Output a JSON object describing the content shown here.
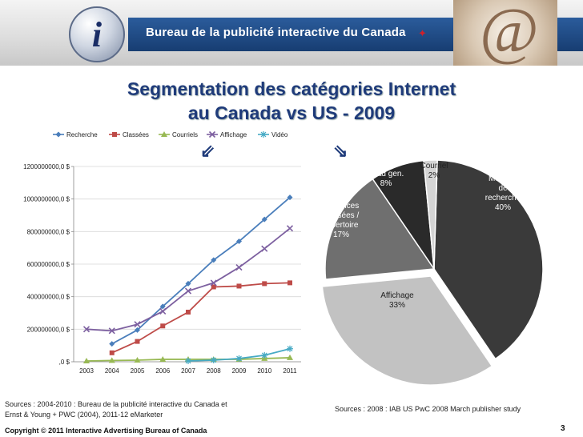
{
  "banner": {
    "text": "Bureau de la publicité interactive du Canada"
  },
  "title": {
    "line1": "Segmentation des catégories Internet",
    "line2": "au Canada vs US - 2009"
  },
  "line_chart": {
    "type": "line",
    "x": [
      "2003",
      "2004",
      "2005",
      "2006",
      "2007",
      "2008",
      "2009",
      "2010",
      "2011"
    ],
    "y_ticks": [
      ",0 $",
      "200000000,0 $",
      "400000000,0 $",
      "600000000,0 $",
      "800000000,0 $",
      "1000000000,0 $",
      "1200000000,0 $"
    ],
    "ylim": [
      0,
      1200000000
    ],
    "series": [
      {
        "name": "Recherche",
        "color": "#4a7ebb",
        "marker": "diamond",
        "values": [
          null,
          110000000,
          195000000,
          340000000,
          480000000,
          625000000,
          740000000,
          875000000,
          1010000000
        ]
      },
      {
        "name": "Classées",
        "color": "#be4b48",
        "marker": "square",
        "values": [
          null,
          55000000,
          125000000,
          220000000,
          305000000,
          460000000,
          465000000,
          480000000,
          485000000
        ]
      },
      {
        "name": "Courriels",
        "color": "#98b954",
        "marker": "triangle",
        "values": [
          5000000,
          8000000,
          10000000,
          15000000,
          15000000,
          15000000,
          15000000,
          20000000,
          25000000
        ]
      },
      {
        "name": "Affichage",
        "color": "#7d60a0",
        "marker": "x",
        "values": [
          200000000,
          190000000,
          230000000,
          310000000,
          435000000,
          485000000,
          580000000,
          695000000,
          820000000
        ]
      },
      {
        "name": "Vidéo",
        "color": "#46aac5",
        "marker": "star",
        "values": [
          null,
          null,
          null,
          null,
          5000000,
          10000000,
          20000000,
          40000000,
          80000000
        ]
      }
    ]
  },
  "pie_chart": {
    "type": "pie",
    "slices": [
      {
        "lines": [
          "Moteurs",
          "de",
          "recherche",
          "40%"
        ],
        "value": 40,
        "color": "#3a3a3a",
        "text_color": "#ffffff"
      },
      {
        "lines": [
          "Affichage",
          "33%"
        ],
        "value": 33,
        "color": "#c2c2c2",
        "text_color": "#222222"
      },
      {
        "lines": [
          "Annonces",
          "classées /",
          "répertoire",
          "17%"
        ],
        "value": 17,
        "color": "#6f6f6f",
        "text_color": "#ffffff"
      },
      {
        "lines": [
          "Lead gen.",
          "8%"
        ],
        "value": 8,
        "color": "#2a2a2a",
        "text_color": "#ffffff"
      },
      {
        "lines": [
          "Courriel",
          "2%"
        ],
        "value": 2,
        "color": "#d4d4d4",
        "text_color": "#222222"
      }
    ]
  },
  "chart_data": [
    {
      "type": "line",
      "x": [
        "2003",
        "2004",
        "2005",
        "2006",
        "2007",
        "2008",
        "2009",
        "2010",
        "2011"
      ],
      "ylim": [
        0,
        1200000000
      ],
      "series": [
        {
          "name": "Recherche",
          "values": [
            null,
            110000000,
            195000000,
            340000000,
            480000000,
            625000000,
            740000000,
            875000000,
            1010000000
          ]
        },
        {
          "name": "Classées",
          "values": [
            null,
            55000000,
            125000000,
            220000000,
            305000000,
            460000000,
            465000000,
            480000000,
            485000000
          ]
        },
        {
          "name": "Courriels",
          "values": [
            5000000,
            8000000,
            10000000,
            15000000,
            15000000,
            15000000,
            15000000,
            20000000,
            25000000
          ]
        },
        {
          "name": "Affichage",
          "values": [
            200000000,
            190000000,
            230000000,
            310000000,
            435000000,
            485000000,
            580000000,
            695000000,
            820000000
          ]
        },
        {
          "name": "Vidéo",
          "values": [
            null,
            null,
            null,
            null,
            5000000,
            10000000,
            20000000,
            40000000,
            80000000
          ]
        }
      ]
    },
    {
      "type": "pie",
      "categories": [
        "Moteurs de recherche",
        "Affichage",
        "Annonces classées / répertoire",
        "Lead gen.",
        "Courriel"
      ],
      "values": [
        40,
        33,
        17,
        8,
        2
      ]
    }
  ],
  "sources": {
    "left_line1": "Sources : 2004-2010 : Bureau de la publicité interactive du Canada et",
    "left_line2": "Ernst & Young + PWC (2004), 2011-12 eMarketer",
    "right": "Sources : 2008 : IAB US PwC 2008 March publisher study"
  },
  "footer": {
    "copyright": "Copyright © 2011  Interactive Advertising Bureau of Canada",
    "page": "3"
  }
}
